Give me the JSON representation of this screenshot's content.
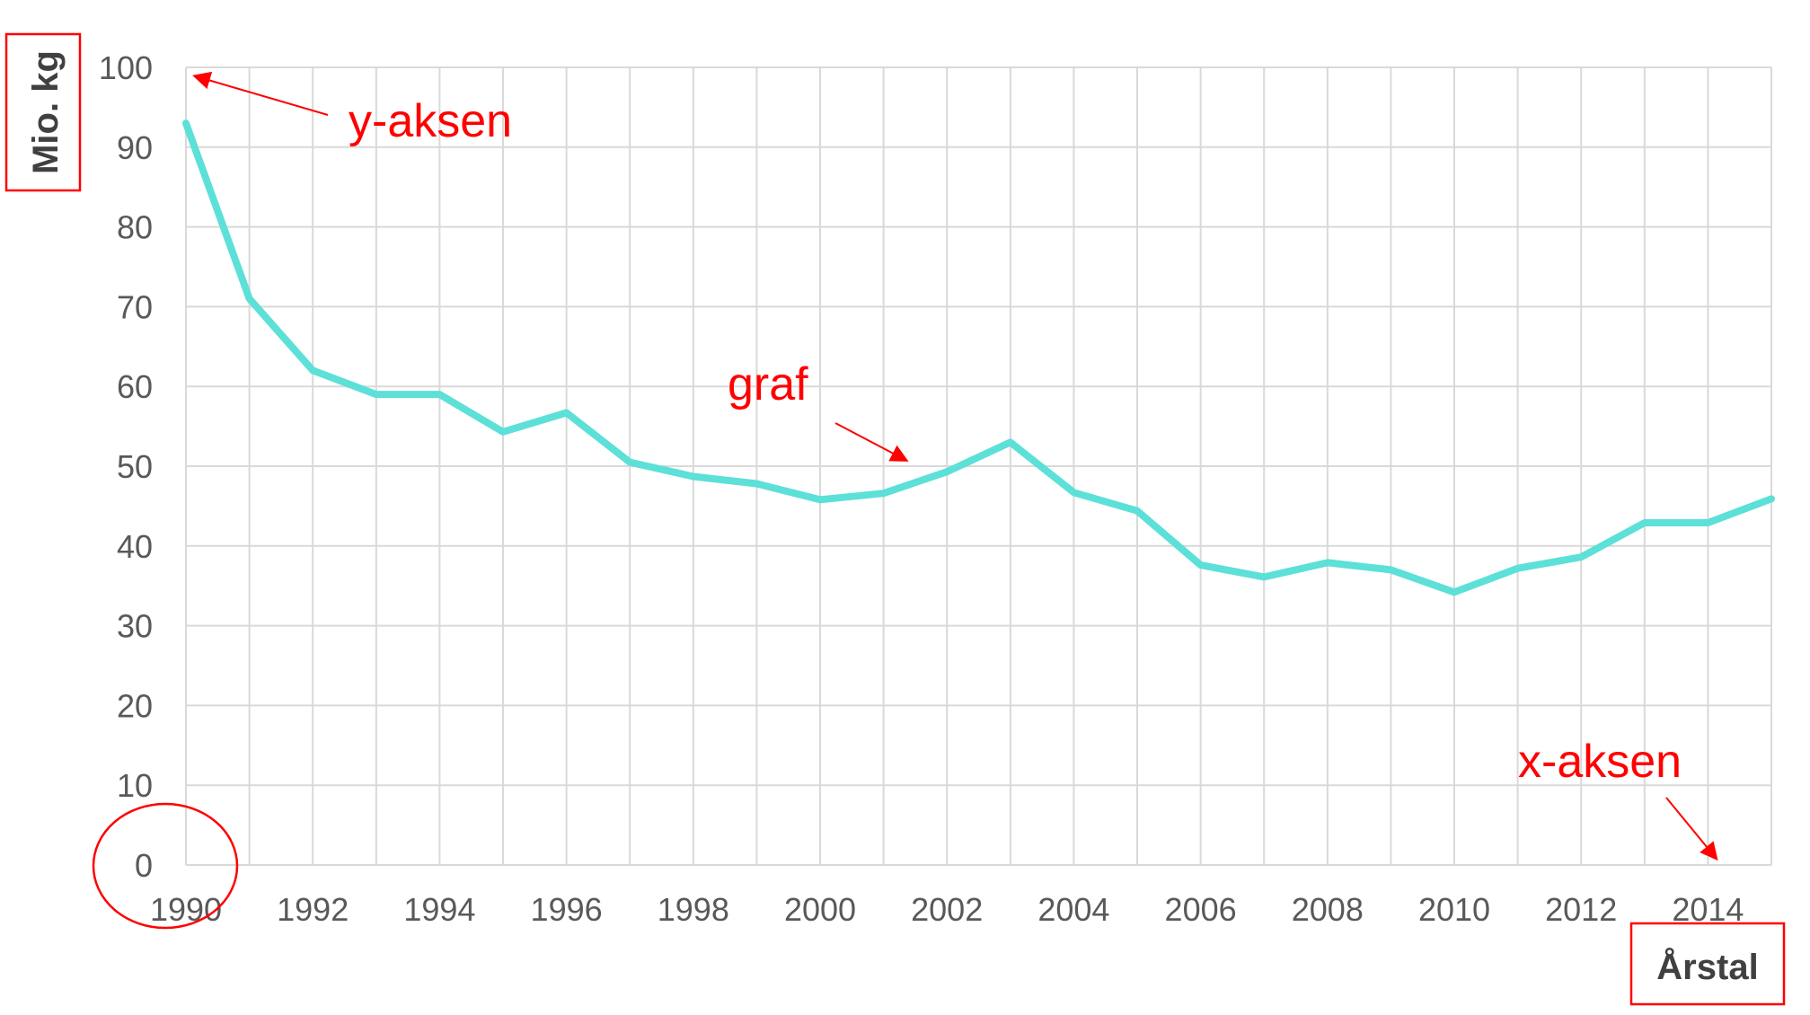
{
  "chart_data": {
    "type": "line",
    "title": "",
    "xlabel": "Årstal",
    "ylabel": "Mio. kg",
    "xlim": [
      1990,
      2015
    ],
    "ylim": [
      0,
      100
    ],
    "yticks": [
      0,
      10,
      20,
      30,
      40,
      50,
      60,
      70,
      80,
      90,
      100
    ],
    "xticks": [
      1990,
      1992,
      1994,
      1996,
      1998,
      2000,
      2002,
      2004,
      2006,
      2008,
      2010,
      2012,
      2014
    ],
    "grid": true,
    "series": [
      {
        "name": "graf",
        "color": "#5ce0d8",
        "x": [
          1990,
          1991,
          1992,
          1993,
          1994,
          1995,
          1996,
          1997,
          1998,
          1999,
          2000,
          2001,
          2002,
          2003,
          2004,
          2005,
          2006,
          2007,
          2008,
          2009,
          2010,
          2011,
          2012,
          2013,
          2014,
          2015
        ],
        "y": [
          93,
          71,
          62,
          59,
          59,
          54.3,
          56.7,
          50.5,
          48.7,
          47.8,
          45.8,
          46.6,
          49.3,
          53,
          46.7,
          44.4,
          37.6,
          36.1,
          37.9,
          37,
          34.2,
          37.2,
          38.6,
          42.9,
          42.9,
          45.9
        ]
      }
    ],
    "annotations": [
      {
        "text": "y-aksen",
        "color": "#ff0000"
      },
      {
        "text": "graf",
        "color": "#ff0000"
      },
      {
        "text": "x-aksen",
        "color": "#ff0000"
      }
    ]
  }
}
